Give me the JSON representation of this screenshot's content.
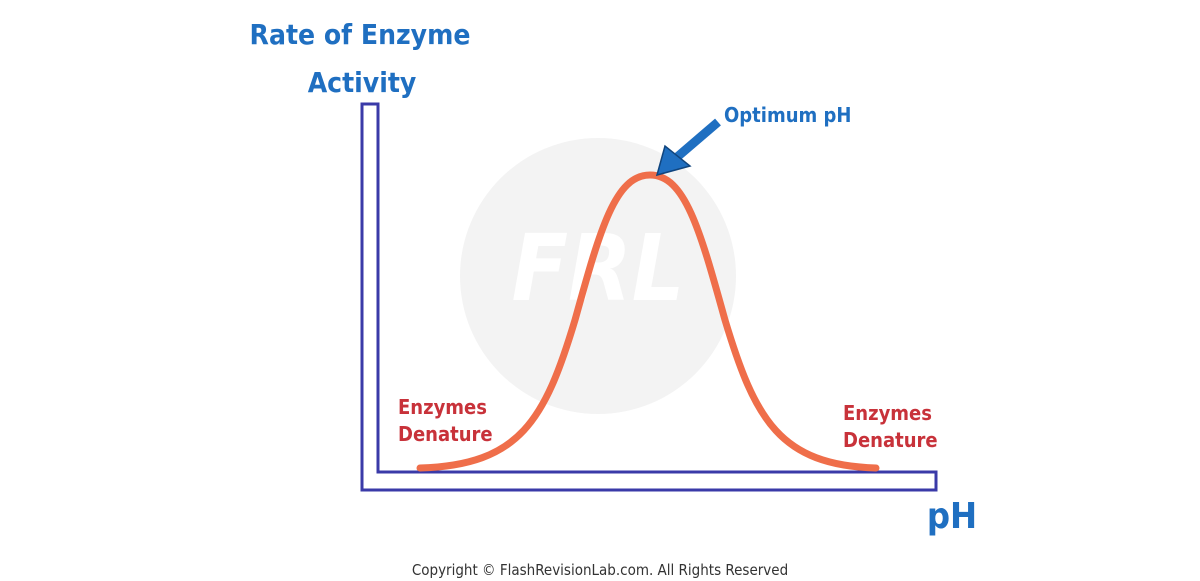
{
  "y_axis_label": [
    "Rate of Enzyme",
    "Activity"
  ],
  "x_axis_label": "pH",
  "annotations": {
    "peak": "Optimum pH",
    "left": [
      "Enzymes",
      "Denature"
    ],
    "right": [
      "Enzymes",
      "Denature"
    ]
  },
  "watermark": "FRL",
  "footer": "Copyright © FlashRevisionLab.com. All Rights Reserved"
}
